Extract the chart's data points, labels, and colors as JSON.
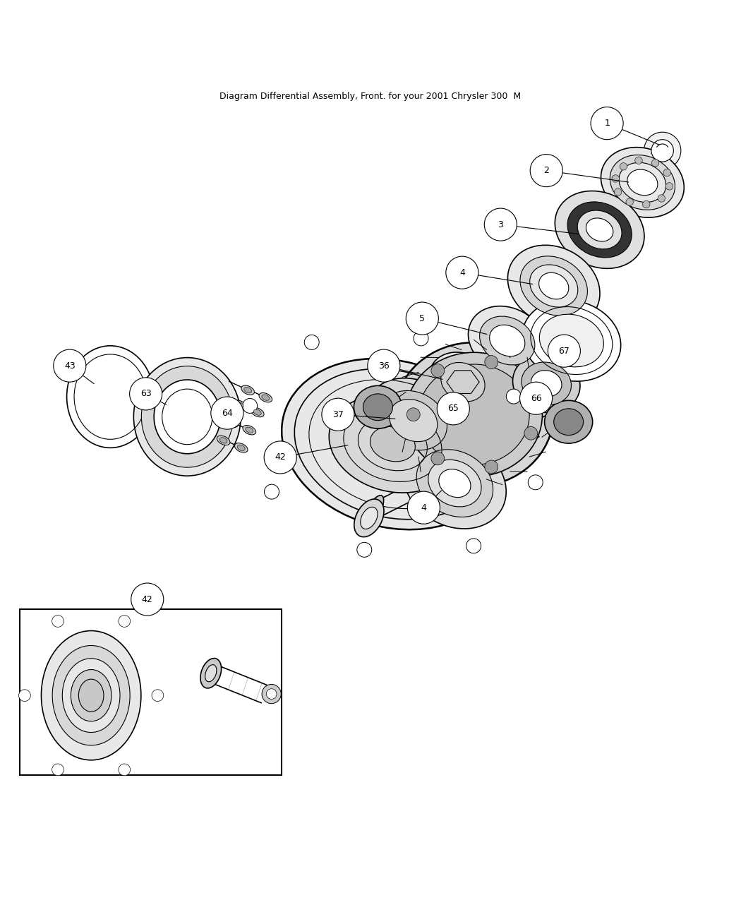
{
  "title": "Diagram Differential Assembly, Front. for your 2001 Chrysler 300  M",
  "background_color": "#ffffff",
  "line_color": "#000000",
  "label_font_size": 9,
  "title_font_size": 9,
  "figsize": [
    10.5,
    12.75
  ],
  "dpi": 100
}
